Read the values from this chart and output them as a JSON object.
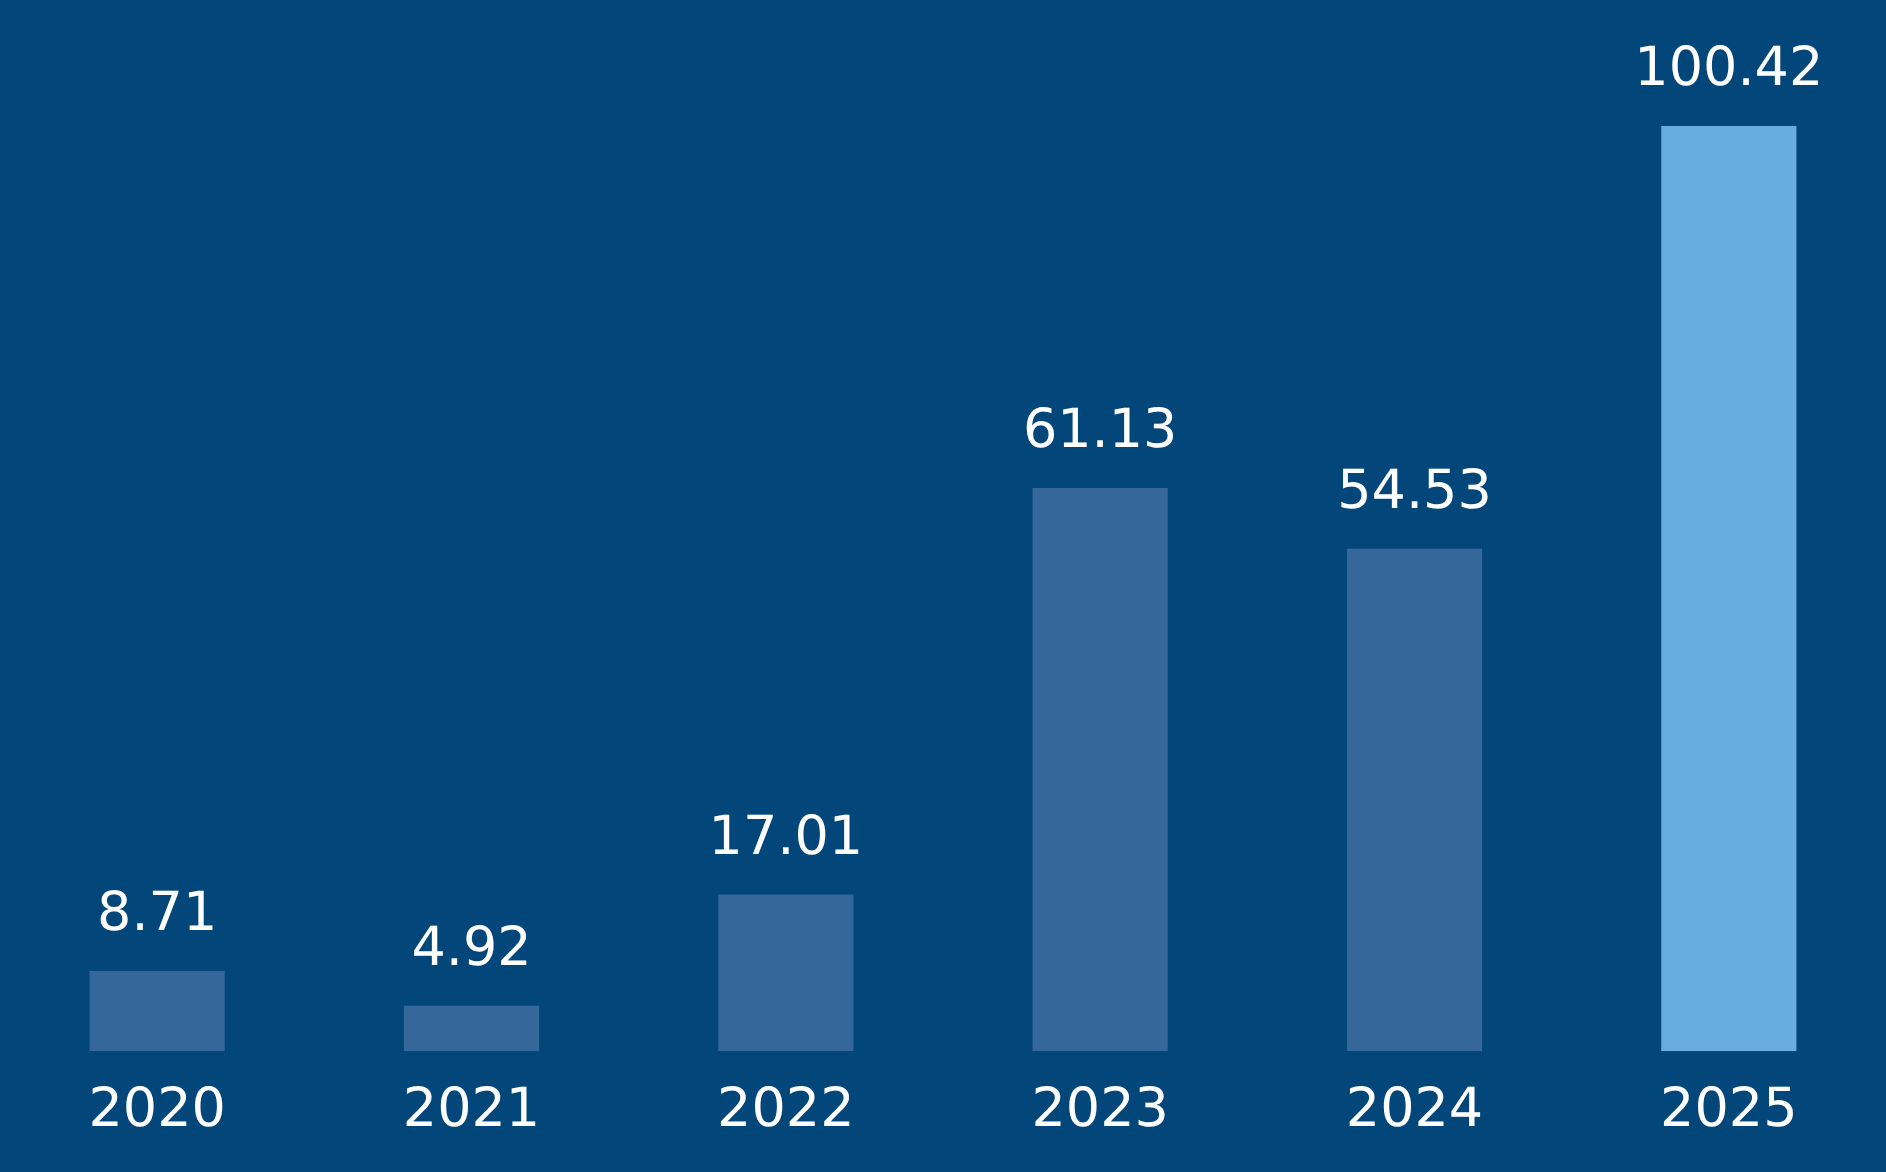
{
  "chart_data": {
    "type": "bar",
    "categories": [
      "2020",
      "2021",
      "2022",
      "2023",
      "2024",
      "2025"
    ],
    "values": [
      8.71,
      4.92,
      17.01,
      61.13,
      54.53,
      100.42
    ],
    "colors": [
      "#35679b",
      "#35679b",
      "#35679b",
      "#35679b",
      "#35679b",
      "#67ade0"
    ],
    "data_labels": true,
    "grid": false,
    "legend": false
  }
}
